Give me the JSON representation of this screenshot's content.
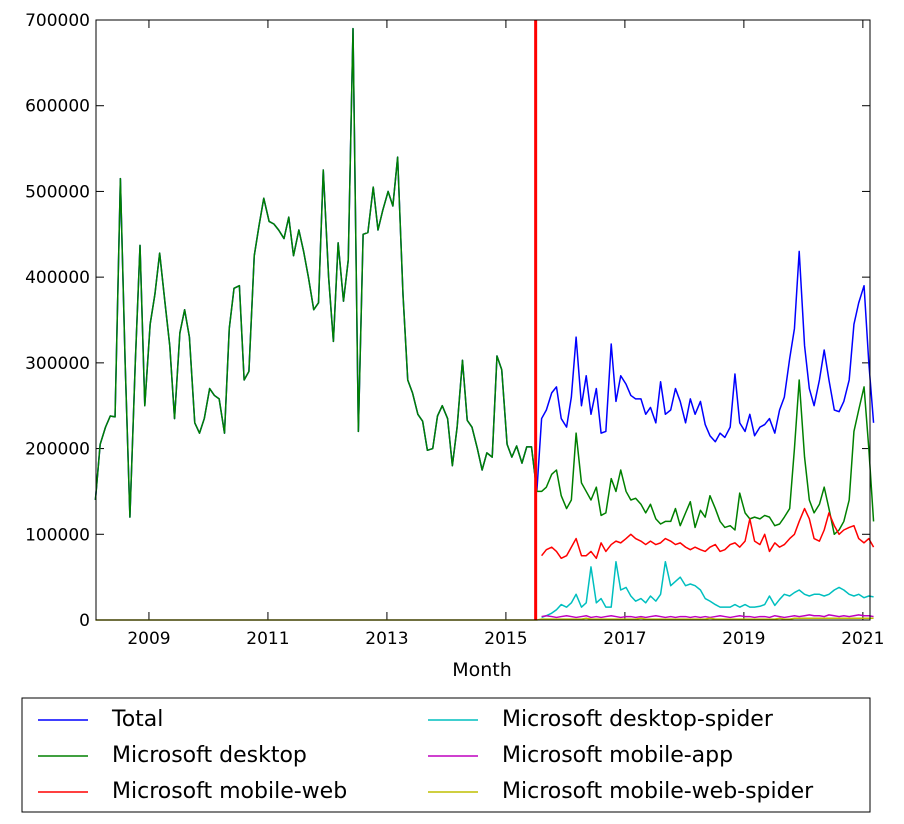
{
  "chart_data": {
    "type": "line",
    "xlabel": "Month",
    "xlim": [
      2008.11,
      2021.12
    ],
    "xticks": [
      2009,
      2011,
      2013,
      2015,
      2017,
      2019,
      2021
    ],
    "ylim": [
      0,
      700000
    ],
    "yticks": [
      0,
      100000,
      200000,
      300000,
      400000,
      500000,
      600000,
      700000
    ],
    "vline": {
      "x": 2015.5,
      "color": "#ff0000"
    },
    "legend": "below",
    "x": [
      2008.1,
      2008.18,
      2008.27,
      2008.35,
      2008.43,
      2008.52,
      2008.6,
      2008.68,
      2008.77,
      2008.85,
      2008.93,
      2009.02,
      2009.1,
      2009.18,
      2009.27,
      2009.35,
      2009.43,
      2009.52,
      2009.6,
      2009.68,
      2009.77,
      2009.85,
      2009.93,
      2010.02,
      2010.1,
      2010.18,
      2010.27,
      2010.35,
      2010.43,
      2010.52,
      2010.6,
      2010.68,
      2010.77,
      2010.85,
      2010.93,
      2011.02,
      2011.1,
      2011.18,
      2011.27,
      2011.35,
      2011.43,
      2011.52,
      2011.6,
      2011.68,
      2011.77,
      2011.85,
      2011.93,
      2012.02,
      2012.1,
      2012.18,
      2012.27,
      2012.35,
      2012.43,
      2012.52,
      2012.6,
      2012.68,
      2012.77,
      2012.85,
      2012.93,
      2013.02,
      2013.1,
      2013.18,
      2013.27,
      2013.35,
      2013.43,
      2013.52,
      2013.6,
      2013.68,
      2013.77,
      2013.85,
      2013.93,
      2014.02,
      2014.1,
      2014.18,
      2014.27,
      2014.35,
      2014.43,
      2014.52,
      2014.6,
      2014.68,
      2014.77,
      2014.85,
      2014.93,
      2015.02,
      2015.1,
      2015.18,
      2015.27,
      2015.35,
      2015.43,
      2015.52,
      2015.6,
      2015.68,
      2015.77,
      2015.85,
      2015.93,
      2016.02,
      2016.1,
      2016.18,
      2016.27,
      2016.35,
      2016.43,
      2016.52,
      2016.6,
      2016.68,
      2016.77,
      2016.85,
      2016.93,
      2017.02,
      2017.1,
      2017.18,
      2017.27,
      2017.35,
      2017.43,
      2017.52,
      2017.6,
      2017.68,
      2017.77,
      2017.85,
      2017.93,
      2018.02,
      2018.1,
      2018.18,
      2018.27,
      2018.35,
      2018.43,
      2018.52,
      2018.6,
      2018.68,
      2018.77,
      2018.85,
      2018.93,
      2019.02,
      2019.1,
      2019.18,
      2019.27,
      2019.35,
      2019.43,
      2019.52,
      2019.6,
      2019.68,
      2019.77,
      2019.85,
      2019.93,
      2020.02,
      2020.1,
      2020.18,
      2020.27,
      2020.35,
      2020.43,
      2020.52,
      2020.6,
      2020.68,
      2020.77,
      2020.85,
      2020.93,
      2021.02,
      2021.1,
      2021.18
    ],
    "series": [
      {
        "name": "Total",
        "color": "#0000ff",
        "values": [
          140000,
          205000,
          225000,
          238000,
          237000,
          515000,
          300000,
          120000,
          300000,
          437000,
          250000,
          345000,
          380000,
          428000,
          370000,
          320000,
          235000,
          335000,
          362000,
          330000,
          230000,
          218000,
          235000,
          270000,
          262000,
          258000,
          218000,
          340000,
          387000,
          390000,
          280000,
          290000,
          425000,
          460000,
          492000,
          465000,
          462000,
          455000,
          445000,
          470000,
          425000,
          455000,
          430000,
          400000,
          362000,
          370000,
          525000,
          400000,
          325000,
          440000,
          372000,
          420000,
          690000,
          220000,
          450000,
          452000,
          505000,
          455000,
          478000,
          500000,
          483000,
          540000,
          380000,
          280000,
          265000,
          240000,
          232000,
          198000,
          200000,
          238000,
          250000,
          235000,
          180000,
          225000,
          303000,
          233000,
          225000,
          200000,
          175000,
          195000,
          190000,
          308000,
          292000,
          205000,
          190000,
          203000,
          183000,
          202000,
          202000,
          150000,
          235000,
          245000,
          265000,
          272000,
          235000,
          225000,
          260000,
          330000,
          250000,
          285000,
          240000,
          270000,
          218000,
          220000,
          322000,
          255000,
          285000,
          275000,
          262000,
          258000,
          258000,
          240000,
          248000,
          230000,
          278000,
          240000,
          245000,
          270000,
          255000,
          230000,
          258000,
          240000,
          255000,
          228000,
          215000,
          208000,
          218000,
          213000,
          225000,
          287000,
          230000,
          220000,
          240000,
          215000,
          225000,
          228000,
          235000,
          218000,
          245000,
          260000,
          305000,
          340000,
          430000,
          320000,
          270000,
          250000,
          280000,
          315000,
          280000,
          245000,
          243000,
          255000,
          280000,
          345000,
          370000,
          390000,
          300000,
          230000
        ]
      },
      {
        "name": "Microsoft desktop",
        "color": "#008000",
        "values": [
          140000,
          205000,
          225000,
          238000,
          237000,
          515000,
          300000,
          120000,
          300000,
          437000,
          250000,
          345000,
          380000,
          428000,
          370000,
          320000,
          235000,
          335000,
          362000,
          330000,
          230000,
          218000,
          235000,
          270000,
          262000,
          258000,
          218000,
          340000,
          387000,
          390000,
          280000,
          290000,
          425000,
          460000,
          492000,
          465000,
          462000,
          455000,
          445000,
          470000,
          425000,
          455000,
          430000,
          400000,
          362000,
          370000,
          525000,
          400000,
          325000,
          440000,
          372000,
          420000,
          690000,
          220000,
          450000,
          452000,
          505000,
          455000,
          478000,
          500000,
          483000,
          540000,
          380000,
          280000,
          265000,
          240000,
          232000,
          198000,
          200000,
          238000,
          250000,
          235000,
          180000,
          225000,
          303000,
          233000,
          225000,
          200000,
          175000,
          195000,
          190000,
          308000,
          292000,
          205000,
          190000,
          203000,
          183000,
          202000,
          202000,
          150000,
          150000,
          155000,
          170000,
          175000,
          145000,
          130000,
          140000,
          218000,
          160000,
          150000,
          140000,
          155000,
          122000,
          125000,
          165000,
          150000,
          175000,
          150000,
          140000,
          142000,
          135000,
          125000,
          135000,
          118000,
          112000,
          115000,
          115000,
          130000,
          110000,
          125000,
          138000,
          108000,
          128000,
          120000,
          145000,
          130000,
          115000,
          108000,
          110000,
          105000,
          148000,
          125000,
          118000,
          120000,
          118000,
          122000,
          120000,
          110000,
          112000,
          120000,
          130000,
          200000,
          280000,
          190000,
          140000,
          125000,
          135000,
          155000,
          130000,
          100000,
          105000,
          115000,
          140000,
          220000,
          245000,
          272000,
          200000,
          115000
        ]
      },
      {
        "name": "Microsoft mobile-web",
        "color": "#ff0000",
        "values": [
          null,
          null,
          null,
          null,
          null,
          null,
          null,
          null,
          null,
          null,
          null,
          null,
          null,
          null,
          null,
          null,
          null,
          null,
          null,
          null,
          null,
          null,
          null,
          null,
          null,
          null,
          null,
          null,
          null,
          null,
          null,
          null,
          null,
          null,
          null,
          null,
          null,
          null,
          null,
          null,
          null,
          null,
          null,
          null,
          null,
          null,
          null,
          null,
          null,
          null,
          null,
          null,
          null,
          null,
          null,
          null,
          null,
          null,
          null,
          null,
          null,
          null,
          null,
          null,
          null,
          null,
          null,
          null,
          null,
          null,
          null,
          null,
          null,
          null,
          null,
          null,
          null,
          null,
          null,
          null,
          null,
          null,
          null,
          null,
          null,
          null,
          null,
          null,
          null,
          null,
          75000,
          82000,
          85000,
          80000,
          72000,
          75000,
          85000,
          95000,
          75000,
          75000,
          80000,
          72000,
          90000,
          80000,
          88000,
          92000,
          90000,
          95000,
          100000,
          95000,
          92000,
          88000,
          92000,
          88000,
          90000,
          95000,
          92000,
          88000,
          90000,
          85000,
          82000,
          85000,
          82000,
          80000,
          85000,
          88000,
          80000,
          82000,
          88000,
          90000,
          85000,
          92000,
          118000,
          92000,
          88000,
          100000,
          80000,
          90000,
          85000,
          88000,
          95000,
          100000,
          115000,
          130000,
          118000,
          95000,
          92000,
          105000,
          125000,
          110000,
          100000,
          105000,
          108000,
          110000,
          95000,
          90000,
          95000,
          85000
        ]
      },
      {
        "name": "Microsoft desktop-spider",
        "color": "#00bfbf",
        "values": [
          null,
          null,
          null,
          null,
          null,
          null,
          null,
          null,
          null,
          null,
          null,
          null,
          null,
          null,
          null,
          null,
          null,
          null,
          null,
          null,
          null,
          null,
          null,
          null,
          null,
          null,
          null,
          null,
          null,
          null,
          null,
          null,
          null,
          null,
          null,
          null,
          null,
          null,
          null,
          null,
          null,
          null,
          null,
          null,
          null,
          null,
          null,
          null,
          null,
          null,
          null,
          null,
          null,
          null,
          null,
          null,
          null,
          null,
          null,
          null,
          null,
          null,
          null,
          null,
          null,
          null,
          null,
          null,
          null,
          null,
          null,
          null,
          null,
          null,
          null,
          null,
          null,
          null,
          null,
          null,
          null,
          null,
          null,
          null,
          null,
          null,
          null,
          null,
          null,
          null,
          3000,
          5000,
          8000,
          12000,
          18000,
          15000,
          20000,
          30000,
          15000,
          20000,
          62000,
          20000,
          25000,
          15000,
          15000,
          68000,
          35000,
          38000,
          28000,
          22000,
          25000,
          20000,
          28000,
          22000,
          30000,
          68000,
          40000,
          45000,
          50000,
          40000,
          42000,
          40000,
          35000,
          25000,
          22000,
          18000,
          15000,
          15000,
          15000,
          18000,
          15000,
          18000,
          15000,
          15000,
          16000,
          18000,
          28000,
          17000,
          24000,
          30000,
          28000,
          32000,
          35000,
          30000,
          28000,
          30000,
          30000,
          28000,
          30000,
          35000,
          38000,
          35000,
          30000,
          28000,
          30000,
          26000,
          28000,
          27000
        ]
      },
      {
        "name": "Microsoft mobile-app",
        "color": "#bf00bf",
        "values": [
          null,
          null,
          null,
          null,
          null,
          null,
          null,
          null,
          null,
          null,
          null,
          null,
          null,
          null,
          null,
          null,
          null,
          null,
          null,
          null,
          null,
          null,
          null,
          null,
          null,
          null,
          null,
          null,
          null,
          null,
          null,
          null,
          null,
          null,
          null,
          null,
          null,
          null,
          null,
          null,
          null,
          null,
          null,
          null,
          null,
          null,
          null,
          null,
          null,
          null,
          null,
          null,
          null,
          null,
          null,
          null,
          null,
          null,
          null,
          null,
          null,
          null,
          null,
          null,
          null,
          null,
          null,
          null,
          null,
          null,
          null,
          null,
          null,
          null,
          null,
          null,
          null,
          null,
          null,
          null,
          null,
          null,
          null,
          null,
          null,
          null,
          null,
          null,
          null,
          null,
          4000,
          5000,
          4000,
          3000,
          4000,
          5000,
          4000,
          3000,
          4000,
          5000,
          3000,
          4000,
          3000,
          4000,
          5000,
          4000,
          3000,
          4000,
          4000,
          3000,
          4000,
          3000,
          4000,
          5000,
          4000,
          3000,
          4000,
          3000,
          4000,
          4000,
          3000,
          4000,
          3000,
          4000,
          3000,
          4000,
          5000,
          4000,
          3000,
          4000,
          5000,
          4000,
          4000,
          3000,
          4000,
          4000,
          3000,
          5000,
          4000,
          3000,
          4000,
          5000,
          4000,
          5000,
          6000,
          5000,
          5000,
          4000,
          6000,
          5000,
          4000,
          5000,
          4000,
          5000,
          6000,
          5000,
          5000,
          4000
        ]
      },
      {
        "name": "Microsoft mobile-web-spider",
        "color": "#bfbf00",
        "values": [
          0,
          0,
          0,
          0,
          0,
          0,
          0,
          0,
          0,
          0,
          0,
          0,
          0,
          0,
          0,
          0,
          0,
          0,
          0,
          0,
          0,
          0,
          0,
          0,
          0,
          0,
          0,
          0,
          0,
          0,
          0,
          0,
          0,
          0,
          0,
          0,
          0,
          0,
          0,
          0,
          0,
          0,
          0,
          0,
          0,
          0,
          0,
          0,
          0,
          0,
          0,
          0,
          0,
          0,
          0,
          0,
          0,
          0,
          0,
          0,
          0,
          0,
          0,
          0,
          0,
          0,
          0,
          0,
          0,
          0,
          0,
          0,
          0,
          0,
          0,
          0,
          0,
          0,
          0,
          0,
          0,
          0,
          0,
          0,
          0,
          0,
          0,
          0,
          0,
          0,
          1000,
          1000,
          1000,
          1000,
          1000,
          1000,
          1000,
          1000,
          1000,
          2000,
          1000,
          1000,
          1000,
          1000,
          1000,
          1000,
          1000,
          1000,
          1000,
          1000,
          2000,
          1000,
          1000,
          1000,
          1000,
          1000,
          1000,
          1000,
          1000,
          1000,
          1000,
          1000,
          1000,
          1000,
          2000,
          1000,
          1000,
          1000,
          1000,
          1000,
          1000,
          1000,
          1000,
          1000,
          1000,
          1000,
          1000,
          1000,
          2000,
          1000,
          1000,
          2000,
          2000,
          2000,
          2000,
          2000,
          2000,
          2000,
          2000,
          2000,
          2000,
          2000,
          2000,
          2000,
          2000,
          2000,
          2000,
          2000
        ]
      }
    ]
  }
}
